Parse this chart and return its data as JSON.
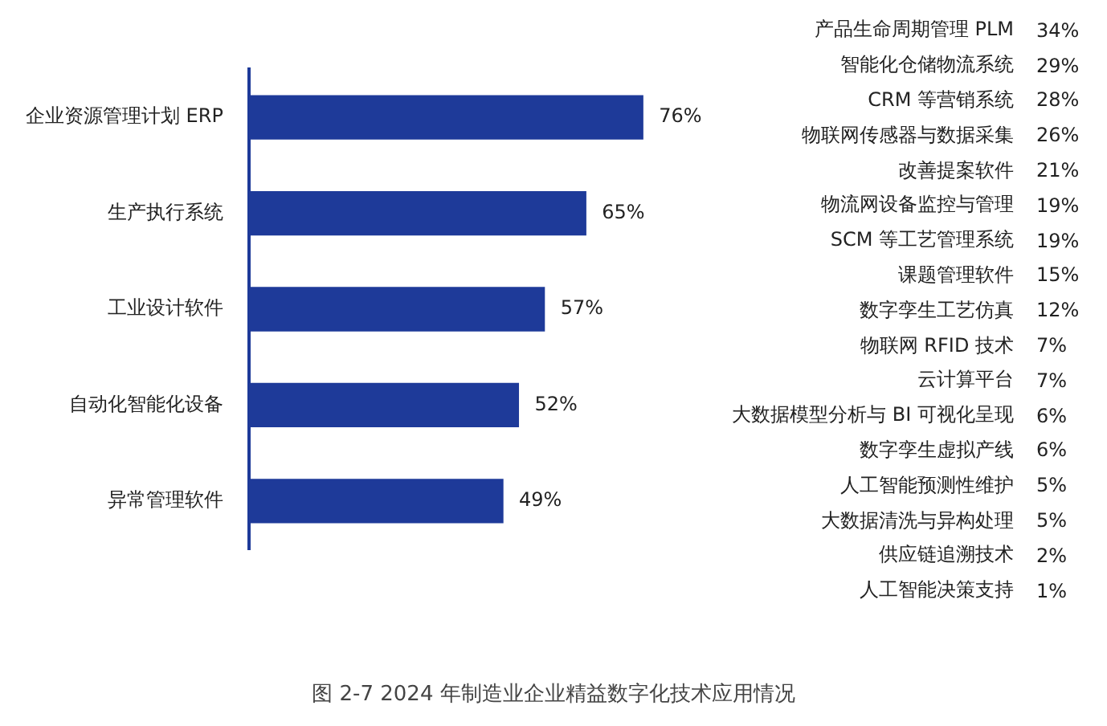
{
  "chart_data": [
    {
      "type": "bar",
      "orientation": "horizontal",
      "categories": [
        "企业资源管理计划 ERP",
        "生产执行系统",
        "工业设计软件",
        "自动化智能化设备",
        "异常管理软件"
      ],
      "values": [
        76,
        65,
        57,
        52,
        49
      ],
      "value_labels": [
        "76%",
        "65%",
        "57%",
        "52%",
        "49%"
      ],
      "color": "#1e3a99",
      "legend": false,
      "tick_labels": "y",
      "annotations": [
        "图 2-7 2024 年制造业企业精益数字化技术应用情况"
      ]
    },
    {
      "type": "other",
      "categories": [
        "产品生命周期管理 PLM",
        "智能化仓储物流系统",
        "CRM 等营销系统",
        "物联网传感器与数据采集",
        "改善提案软件",
        "物流网设备监控与管理",
        "SCM 等工艺管理系统",
        "课题管理软件",
        "数字孪生工艺仿真",
        "物联网 RFID 技术",
        "云计算平台",
        "大数据模型分析与 BI 可视化呈现",
        "数字孪生虚拟产线",
        "人工智能预测性维护",
        "大数据清洗与异构处理",
        "供应链追溯技术",
        "人工智能决策支持"
      ],
      "values": [
        34,
        29,
        28,
        26,
        21,
        19,
        19,
        15,
        12,
        7,
        7,
        6,
        6,
        5,
        5,
        2,
        1
      ],
      "value_labels": [
        "34%",
        "29%",
        "28%",
        "26%",
        "21%",
        "19%",
        "19%",
        "15%",
        "12%",
        "7%",
        "7%",
        "6%",
        "6%",
        "5%",
        "5%",
        "2%",
        "1%"
      ]
    }
  ]
}
